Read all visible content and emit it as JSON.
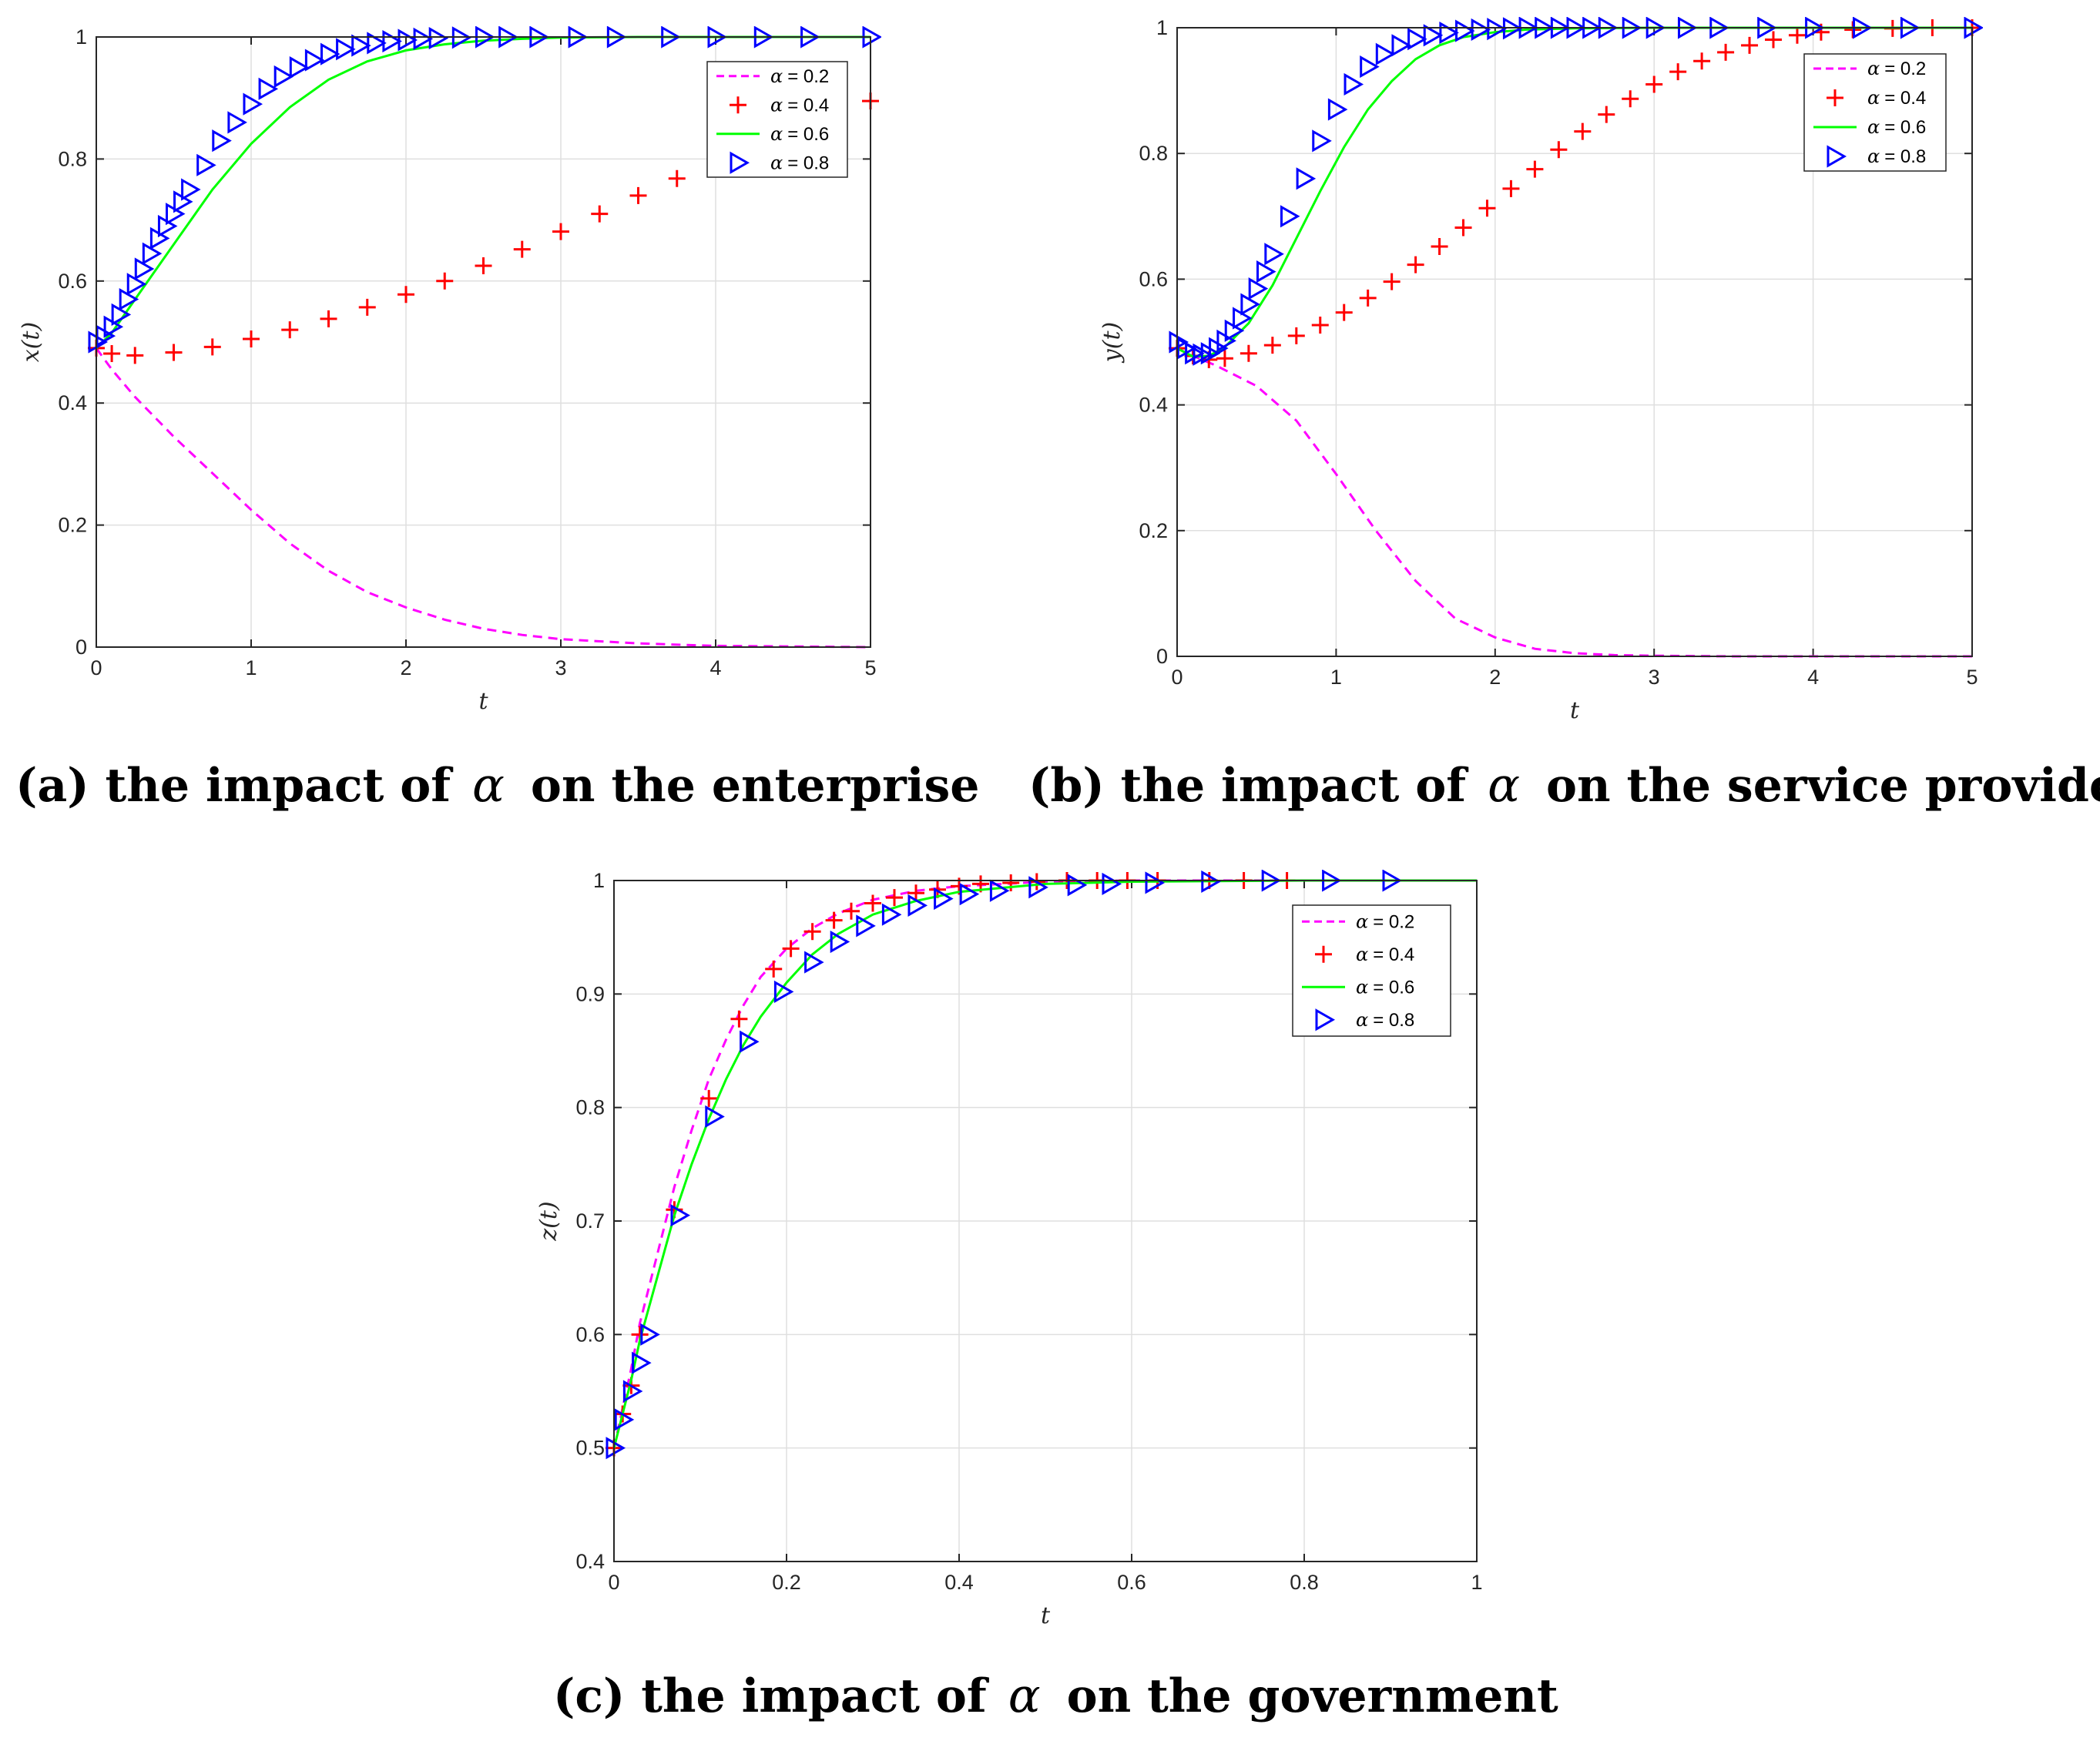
{
  "chart_data": [
    {
      "type": "line",
      "id": "a",
      "title": "",
      "xlabel": "t",
      "ylabel": "x(t)",
      "xlim": [
        0,
        5
      ],
      "ylim": [
        0,
        1
      ],
      "xticks": [
        "0",
        "1",
        "2",
        "3",
        "4",
        "5"
      ],
      "yticks": [
        "0",
        "0.2",
        "0.4",
        "0.6",
        "0.8",
        "1"
      ],
      "grid": true,
      "legend_position": "top-right",
      "caption": {
        "label": "(a) the impact of",
        "symbol": "α",
        "rest": "on the enterprise"
      },
      "series": [
        {
          "name": "α = 0.2",
          "legend_symbol": "α",
          "legend_value": "= 0.2",
          "style": "dashed",
          "color": "#ff00ff",
          "x": [
            0,
            0.1,
            0.25,
            0.5,
            0.75,
            1,
            1.25,
            1.5,
            1.75,
            2,
            2.25,
            2.5,
            2.75,
            3,
            3.5,
            4,
            4.5,
            5
          ],
          "y": [
            0.49,
            0.455,
            0.41,
            0.345,
            0.285,
            0.225,
            0.17,
            0.125,
            0.09,
            0.065,
            0.045,
            0.03,
            0.02,
            0.013,
            0.006,
            0.002,
            0.001,
            0.0
          ]
        },
        {
          "name": "α = 0.4",
          "legend_symbol": "α",
          "legend_value": "= 0.4",
          "style": "plus",
          "color": "#ff0000",
          "x": [
            0,
            0.1,
            0.25,
            0.5,
            0.75,
            1,
            1.25,
            1.5,
            1.75,
            2,
            2.25,
            2.5,
            2.75,
            3,
            3.25,
            3.5,
            3.75,
            4,
            4.25,
            4.5,
            4.75,
            5
          ],
          "y": [
            0.49,
            0.481,
            0.478,
            0.483,
            0.492,
            0.505,
            0.52,
            0.538,
            0.557,
            0.578,
            0.6,
            0.625,
            0.652,
            0.681,
            0.71,
            0.74,
            0.768,
            0.796,
            0.823,
            0.85,
            0.873,
            0.895
          ]
        },
        {
          "name": "α = 0.6",
          "legend_symbol": "α",
          "legend_value": "= 0.6",
          "style": "solid",
          "color": "#00ff00",
          "x": [
            0,
            0.1,
            0.25,
            0.5,
            0.75,
            1,
            1.25,
            1.5,
            1.75,
            2,
            2.25,
            2.5,
            2.75,
            3,
            3.5,
            4,
            4.5,
            5
          ],
          "y": [
            0.49,
            0.515,
            0.57,
            0.66,
            0.75,
            0.825,
            0.885,
            0.93,
            0.96,
            0.978,
            0.988,
            0.994,
            0.997,
            0.999,
            1.0,
            1.0,
            1.0,
            1.0
          ]
        },
        {
          "name": "α = 0.8",
          "legend_symbol": "α",
          "legend_value": "= 0.8",
          "style": "triangle",
          "color": "#0000ff",
          "x": [
            0,
            0.05,
            0.1,
            0.15,
            0.2,
            0.25,
            0.3,
            0.35,
            0.4,
            0.45,
            0.5,
            0.55,
            0.6,
            0.7,
            0.8,
            0.9,
            1.0,
            1.1,
            1.2,
            1.3,
            1.4,
            1.5,
            1.6,
            1.7,
            1.8,
            1.9,
            2.0,
            2.1,
            2.2,
            2.35,
            2.5,
            2.65,
            2.85,
            3.1,
            3.35,
            3.7,
            4.0,
            4.3,
            4.6,
            5.0
          ],
          "y": [
            0.5,
            0.51,
            0.525,
            0.545,
            0.57,
            0.595,
            0.62,
            0.645,
            0.67,
            0.69,
            0.71,
            0.73,
            0.75,
            0.79,
            0.83,
            0.86,
            0.89,
            0.915,
            0.935,
            0.95,
            0.962,
            0.972,
            0.98,
            0.986,
            0.99,
            0.993,
            0.995,
            0.997,
            0.998,
            0.999,
            1.0,
            1.0,
            1.0,
            1.0,
            1.0,
            1.0,
            1.0,
            1.0,
            1.0,
            1.0
          ]
        }
      ]
    },
    {
      "type": "line",
      "id": "b",
      "title": "",
      "xlabel": "t",
      "ylabel": "y(t)",
      "xlim": [
        0,
        5
      ],
      "ylim": [
        0,
        1
      ],
      "xticks": [
        "0",
        "1",
        "2",
        "3",
        "4",
        "5"
      ],
      "yticks": [
        "0",
        "0.2",
        "0.4",
        "0.6",
        "0.8",
        "1"
      ],
      "grid": true,
      "legend_position": "top-right",
      "caption": {
        "label": "(b) the impact of",
        "symbol": "α",
        "rest": "on the service provider"
      },
      "series": [
        {
          "name": "α = 0.2",
          "legend_symbol": "α",
          "legend_value": "= 0.2",
          "style": "dashed",
          "color": "#ff00ff",
          "x": [
            0,
            0.1,
            0.25,
            0.5,
            0.75,
            1,
            1.25,
            1.5,
            1.75,
            2,
            2.25,
            2.5,
            2.75,
            3,
            3.5,
            4,
            4.5,
            5
          ],
          "y": [
            0.49,
            0.478,
            0.462,
            0.43,
            0.375,
            0.29,
            0.2,
            0.12,
            0.06,
            0.03,
            0.012,
            0.005,
            0.002,
            0.001,
            0.0,
            0.0,
            0.0,
            0.0
          ]
        },
        {
          "name": "α = 0.4",
          "legend_symbol": "α",
          "legend_value": "= 0.4",
          "style": "plus",
          "color": "#ff0000",
          "x": [
            0,
            0.1,
            0.2,
            0.3,
            0.45,
            0.6,
            0.75,
            0.9,
            1.05,
            1.2,
            1.35,
            1.5,
            1.65,
            1.8,
            1.95,
            2.1,
            2.25,
            2.4,
            2.55,
            2.7,
            2.85,
            3.0,
            3.15,
            3.3,
            3.45,
            3.6,
            3.75,
            3.9,
            4.05,
            4.25,
            4.5,
            4.75,
            5
          ],
          "y": [
            0.49,
            0.478,
            0.472,
            0.474,
            0.482,
            0.495,
            0.51,
            0.527,
            0.547,
            0.57,
            0.596,
            0.623,
            0.652,
            0.682,
            0.713,
            0.744,
            0.775,
            0.806,
            0.835,
            0.862,
            0.887,
            0.91,
            0.93,
            0.947,
            0.961,
            0.972,
            0.981,
            0.988,
            0.993,
            0.997,
            0.999,
            1.0,
            1.0
          ]
        },
        {
          "name": "α = 0.6",
          "legend_symbol": "α",
          "legend_value": "= 0.6",
          "style": "solid",
          "color": "#00ff00",
          "x": [
            0,
            0.1,
            0.2,
            0.3,
            0.45,
            0.6,
            0.75,
            0.9,
            1.05,
            1.2,
            1.35,
            1.5,
            1.65,
            1.8,
            2.0,
            2.2,
            2.5,
            3.0,
            3.5,
            4,
            4.5,
            5
          ],
          "y": [
            0.49,
            0.477,
            0.478,
            0.492,
            0.53,
            0.59,
            0.665,
            0.74,
            0.81,
            0.87,
            0.915,
            0.95,
            0.972,
            0.985,
            0.993,
            0.997,
            0.999,
            1.0,
            1.0,
            1.0,
            1.0,
            1.0
          ]
        },
        {
          "name": "α = 0.8",
          "legend_symbol": "α",
          "legend_value": "= 0.8",
          "style": "triangle",
          "color": "#0000ff",
          "x": [
            0,
            0.05,
            0.1,
            0.15,
            0.2,
            0.25,
            0.3,
            0.35,
            0.4,
            0.45,
            0.5,
            0.55,
            0.6,
            0.7,
            0.8,
            0.9,
            1.0,
            1.1,
            1.2,
            1.3,
            1.4,
            1.5,
            1.6,
            1.7,
            1.8,
            1.9,
            2.0,
            2.1,
            2.2,
            2.3,
            2.4,
            2.5,
            2.6,
            2.7,
            2.85,
            3.0,
            3.2,
            3.4,
            3.7,
            4.0,
            4.3,
            4.6,
            5.0
          ],
          "y": [
            0.5,
            0.49,
            0.482,
            0.48,
            0.482,
            0.49,
            0.502,
            0.518,
            0.538,
            0.56,
            0.585,
            0.612,
            0.64,
            0.7,
            0.76,
            0.82,
            0.87,
            0.91,
            0.938,
            0.958,
            0.972,
            0.982,
            0.988,
            0.992,
            0.995,
            0.997,
            0.998,
            0.999,
            1.0,
            1.0,
            1.0,
            1.0,
            1.0,
            1.0,
            1.0,
            1.0,
            1.0,
            1.0,
            1.0,
            1.0,
            1.0,
            1.0,
            1.0
          ]
        }
      ]
    },
    {
      "type": "line",
      "id": "c",
      "title": "",
      "xlabel": "t",
      "ylabel": "z(t)",
      "xlim": [
        0,
        1
      ],
      "ylim": [
        0.4,
        1
      ],
      "xticks": [
        "0",
        "0.2",
        "0.4",
        "0.6",
        "0.8",
        "1"
      ],
      "yticks": [
        "0.4",
        "0.5",
        "0.6",
        "0.7",
        "0.8",
        "0.9",
        "1"
      ],
      "grid": true,
      "legend_position": "top-right",
      "caption": {
        "label": "(c) the impact of",
        "symbol": "α",
        "rest": "on the government"
      },
      "series": [
        {
          "name": "α = 0.2",
          "legend_symbol": "α",
          "legend_value": "= 0.2",
          "style": "dashed",
          "color": "#ff00ff",
          "x": [
            0,
            0.01,
            0.02,
            0.03,
            0.05,
            0.07,
            0.09,
            0.11,
            0.13,
            0.15,
            0.17,
            0.2,
            0.23,
            0.26,
            0.3,
            0.35,
            0.4,
            0.5,
            0.6,
            0.8,
            1.0
          ],
          "y": [
            0.5,
            0.535,
            0.57,
            0.61,
            0.67,
            0.73,
            0.78,
            0.825,
            0.86,
            0.89,
            0.915,
            0.94,
            0.958,
            0.971,
            0.983,
            0.991,
            0.995,
            0.999,
            1.0,
            1.0,
            1.0
          ]
        },
        {
          "name": "α = 0.4",
          "legend_symbol": "α",
          "legend_value": "= 0.4",
          "style": "plus",
          "color": "#ff0000",
          "x": [
            0,
            0.01,
            0.02,
            0.03,
            0.07,
            0.11,
            0.145,
            0.185,
            0.205,
            0.23,
            0.255,
            0.275,
            0.3,
            0.325,
            0.35,
            0.375,
            0.4,
            0.425,
            0.46,
            0.49,
            0.525,
            0.56,
            0.595,
            0.63,
            0.69,
            0.73,
            0.78
          ],
          "y": [
            0.5,
            0.53,
            0.555,
            0.6,
            0.71,
            0.808,
            0.878,
            0.922,
            0.94,
            0.955,
            0.965,
            0.973,
            0.98,
            0.985,
            0.989,
            0.992,
            0.995,
            0.997,
            0.998,
            0.999,
            1.0,
            1.0,
            1.0,
            1.0,
            1.0,
            1.0,
            1.0
          ]
        },
        {
          "name": "α = 0.6",
          "legend_symbol": "α",
          "legend_value": "= 0.6",
          "style": "solid",
          "color": "#00ff00",
          "x": [
            0,
            0.01,
            0.02,
            0.03,
            0.05,
            0.07,
            0.09,
            0.11,
            0.13,
            0.15,
            0.17,
            0.2,
            0.23,
            0.26,
            0.3,
            0.35,
            0.4,
            0.5,
            0.6,
            0.8,
            1.0
          ],
          "y": [
            0.5,
            0.53,
            0.56,
            0.595,
            0.65,
            0.705,
            0.75,
            0.79,
            0.825,
            0.855,
            0.88,
            0.91,
            0.935,
            0.953,
            0.97,
            0.982,
            0.99,
            0.997,
            0.999,
            1.0,
            1.0
          ]
        },
        {
          "name": "α = 0.8",
          "legend_symbol": "α",
          "legend_value": "= 0.8",
          "style": "triangle",
          "color": "#0000ff",
          "x": [
            0,
            0.01,
            0.02,
            0.03,
            0.04,
            0.075,
            0.115,
            0.155,
            0.195,
            0.23,
            0.26,
            0.29,
            0.32,
            0.35,
            0.38,
            0.41,
            0.445,
            0.49,
            0.535,
            0.575,
            0.625,
            0.69,
            0.76,
            0.83,
            0.9
          ],
          "y": [
            0.5,
            0.525,
            0.55,
            0.575,
            0.6,
            0.705,
            0.792,
            0.858,
            0.902,
            0.928,
            0.946,
            0.96,
            0.97,
            0.978,
            0.984,
            0.988,
            0.991,
            0.994,
            0.996,
            0.997,
            0.998,
            0.999,
            1.0,
            1.0,
            1.0
          ]
        }
      ]
    }
  ]
}
